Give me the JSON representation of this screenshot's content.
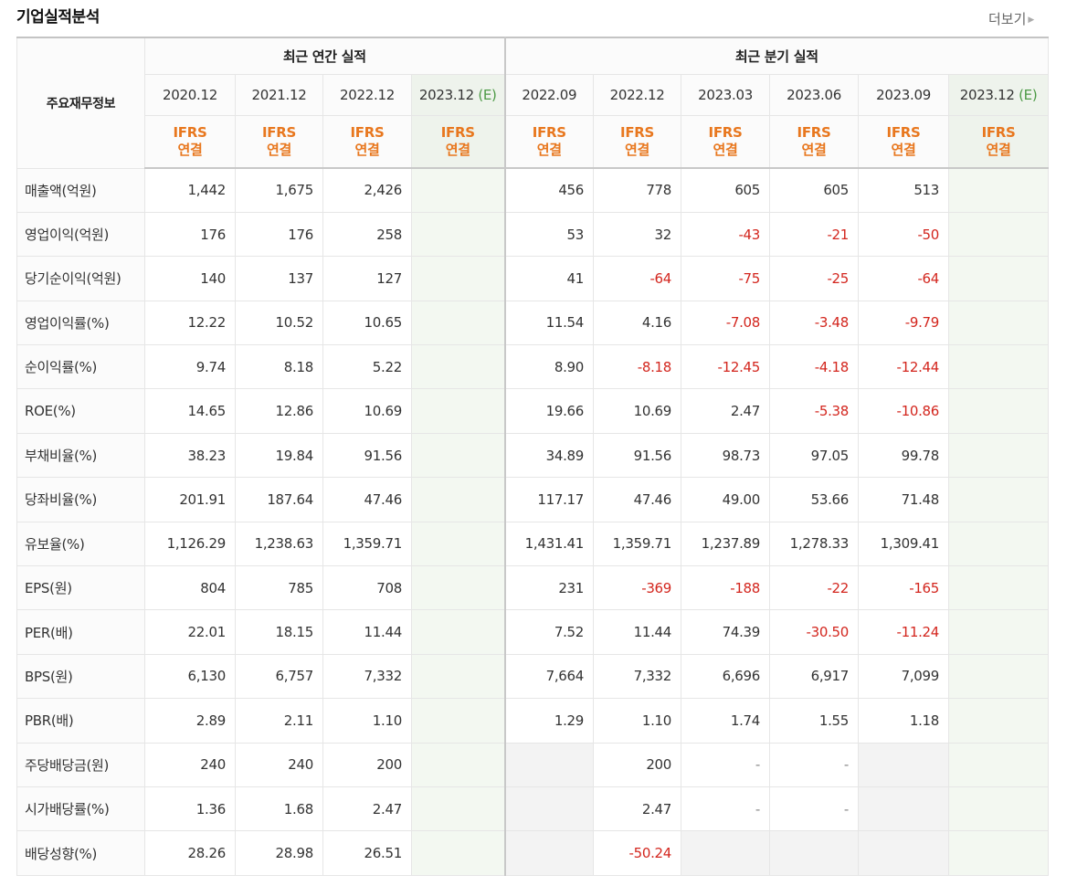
{
  "section": {
    "title": "기업실적분석",
    "more_label": "더보기"
  },
  "header": {
    "corner_label": "주요재무정보",
    "annual_group": "최근 연간 실적",
    "quarter_group": "최근 분기 실적",
    "annual_periods": [
      "2020.12",
      "2021.12",
      "2022.12",
      "2023.12"
    ],
    "quarter_periods": [
      "2022.09",
      "2022.12",
      "2023.03",
      "2023.06",
      "2023.09",
      "2023.12"
    ],
    "estimate_marker": "(E)",
    "ifrs_line1": "IFRS",
    "ifrs_line2": "연결"
  },
  "rows": [
    {
      "label": "매출액(억원)",
      "values": [
        "1,442",
        "1,675",
        "2,426",
        "",
        "456",
        "778",
        "605",
        "605",
        "513",
        ""
      ]
    },
    {
      "label": "영업이익(억원)",
      "values": [
        "176",
        "176",
        "258",
        "",
        "53",
        "32",
        "-43",
        "-21",
        "-50",
        ""
      ]
    },
    {
      "label": "당기순이익(억원)",
      "values": [
        "140",
        "137",
        "127",
        "",
        "41",
        "-64",
        "-75",
        "-25",
        "-64",
        ""
      ]
    },
    {
      "label": "영업이익률(%)",
      "values": [
        "12.22",
        "10.52",
        "10.65",
        "",
        "11.54",
        "4.16",
        "-7.08",
        "-3.48",
        "-9.79",
        ""
      ]
    },
    {
      "label": "순이익률(%)",
      "values": [
        "9.74",
        "8.18",
        "5.22",
        "",
        "8.90",
        "-8.18",
        "-12.45",
        "-4.18",
        "-12.44",
        ""
      ]
    },
    {
      "label": "ROE(%)",
      "values": [
        "14.65",
        "12.86",
        "10.69",
        "",
        "19.66",
        "10.69",
        "2.47",
        "-5.38",
        "-10.86",
        ""
      ]
    },
    {
      "label": "부채비율(%)",
      "values": [
        "38.23",
        "19.84",
        "91.56",
        "",
        "34.89",
        "91.56",
        "98.73",
        "97.05",
        "99.78",
        ""
      ]
    },
    {
      "label": "당좌비율(%)",
      "values": [
        "201.91",
        "187.64",
        "47.46",
        "",
        "117.17",
        "47.46",
        "49.00",
        "53.66",
        "71.48",
        ""
      ]
    },
    {
      "label": "유보율(%)",
      "values": [
        "1,126.29",
        "1,238.63",
        "1,359.71",
        "",
        "1,431.41",
        "1,359.71",
        "1,237.89",
        "1,278.33",
        "1,309.41",
        ""
      ]
    },
    {
      "label": "EPS(원)",
      "values": [
        "804",
        "785",
        "708",
        "",
        "231",
        "-369",
        "-188",
        "-22",
        "-165",
        ""
      ]
    },
    {
      "label": "PER(배)",
      "values": [
        "22.01",
        "18.15",
        "11.44",
        "",
        "7.52",
        "11.44",
        "74.39",
        "-30.50",
        "-11.24",
        ""
      ]
    },
    {
      "label": "BPS(원)",
      "values": [
        "6,130",
        "6,757",
        "7,332",
        "",
        "7,664",
        "7,332",
        "6,696",
        "6,917",
        "7,099",
        ""
      ]
    },
    {
      "label": "PBR(배)",
      "values": [
        "2.89",
        "2.11",
        "1.10",
        "",
        "1.29",
        "1.10",
        "1.74",
        "1.55",
        "1.18",
        ""
      ]
    },
    {
      "label": "주당배당금(원)",
      "values": [
        "240",
        "240",
        "200",
        "",
        "",
        "200",
        "-",
        "-",
        "",
        ""
      ]
    },
    {
      "label": "시가배당률(%)",
      "values": [
        "1.36",
        "1.68",
        "2.47",
        "",
        "",
        "2.47",
        "-",
        "-",
        "",
        ""
      ]
    },
    {
      "label": "배당성향(%)",
      "values": [
        "28.26",
        "28.98",
        "26.51",
        "",
        "",
        "-50.24",
        "",
        "",
        "",
        ""
      ]
    }
  ],
  "group_starts": [
    3,
    6,
    9,
    13
  ],
  "na_cells": [
    [
      13,
      4
    ],
    [
      13,
      8
    ],
    [
      14,
      4
    ],
    [
      14,
      8
    ],
    [
      15,
      4
    ],
    [
      15,
      6
    ],
    [
      15,
      7
    ],
    [
      15,
      8
    ]
  ],
  "colors": {
    "negative": "#d3261e",
    "ifrs": "#e8771e",
    "estimate_marker": "#4c9a45",
    "estimate_bg": "#f3f8f1"
  }
}
